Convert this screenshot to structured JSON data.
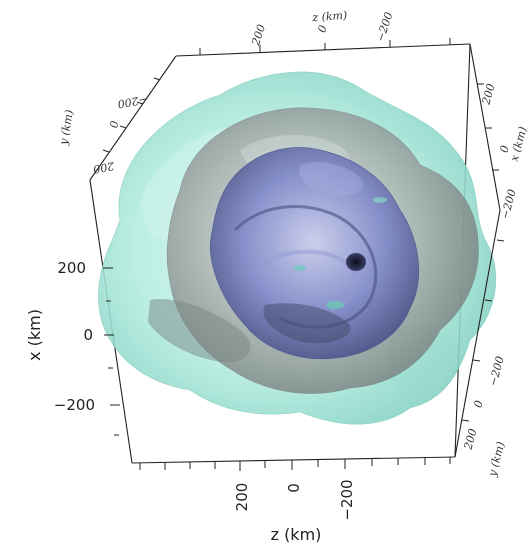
{
  "figure": {
    "front_axes": {
      "x_axis": {
        "label": "x (km)",
        "tick_labels": [
          "200",
          "0",
          "−200"
        ]
      },
      "z_axis": {
        "label": "z (km)",
        "tick_labels": [
          "200",
          "0",
          "−200"
        ]
      }
    },
    "back_axes": {
      "top_z_axis": {
        "label": "z (km)",
        "tick_labels": [
          "200",
          "0",
          "−200"
        ]
      },
      "left_y_axis": {
        "label": "y (km)",
        "tick_labels": [
          "−200",
          "0",
          "200"
        ]
      },
      "right_x_axis": {
        "label": "x (km)",
        "tick_labels": [
          "200",
          "0",
          "−200"
        ]
      },
      "right_y_axis": {
        "label": "y (km)",
        "tick_labels": [
          "−200",
          "0",
          "200"
        ]
      }
    },
    "colors": {
      "outer_surface": "#a9e8dc",
      "middle_surface": "#9a9a9a",
      "inner_surface": "#6f78c4",
      "core": "#1a1d3a"
    }
  }
}
